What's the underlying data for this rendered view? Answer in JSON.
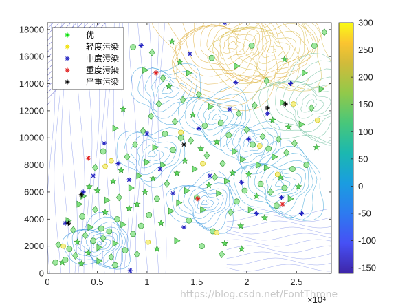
{
  "chart_data": {
    "type": "scatter",
    "x_exponent_label": "×10⁴",
    "xlim": [
      0,
      28500
    ],
    "ylim": [
      0,
      18500
    ],
    "xticks": [
      "0",
      "0.5",
      "1",
      "1.5",
      "2",
      "2.5"
    ],
    "xtick_values": [
      0,
      5000,
      10000,
      15000,
      20000,
      25000
    ],
    "yticks": [
      "0",
      "2000",
      "4000",
      "6000",
      "8000",
      "10000",
      "12000",
      "14000",
      "16000",
      "18000"
    ],
    "ytick_values": [
      0,
      2000,
      4000,
      6000,
      8000,
      10000,
      12000,
      14000,
      16000,
      18000
    ],
    "colorbar": {
      "min": -160,
      "max": 300,
      "ticks": [
        "300",
        "250",
        "200",
        "150",
        "100",
        "50",
        "0",
        "-50",
        "-100",
        "-150"
      ],
      "tick_values": [
        300,
        250,
        200,
        150,
        100,
        50,
        0,
        -50,
        -100,
        -150
      ],
      "colors": [
        "#3e26a8",
        "#4650f5",
        "#2d7bf0",
        "#1a9de0",
        "#1bb8b0",
        "#48c77a",
        "#92c94a",
        "#d2bb3a",
        "#fbc530",
        "#f9fb15"
      ]
    },
    "legend": {
      "placement": "top-left",
      "entries": [
        {
          "label": "优",
          "color": "#00e000"
        },
        {
          "label": "轻度污染",
          "color": "#f0e000"
        },
        {
          "label": "中度污染",
          "color": "#2020c0"
        },
        {
          "label": "重度污染",
          "color": "#e02020"
        },
        {
          "label": "严重污染",
          "color": "#000000"
        }
      ]
    },
    "series": [
      {
        "name": "优",
        "color": "#00e000",
        "points": [
          [
            800,
            800
          ],
          [
            1100,
            2100
          ],
          [
            1500,
            800
          ],
          [
            2100,
            3900
          ],
          [
            2200,
            1800
          ],
          [
            2600,
            3200
          ],
          [
            3000,
            2300
          ],
          [
            3200,
            5100
          ],
          [
            3500,
            4200
          ],
          [
            3800,
            2800
          ],
          [
            4100,
            1500
          ],
          [
            4300,
            3400
          ],
          [
            4600,
            2400
          ],
          [
            4800,
            4700
          ],
          [
            5000,
            6100
          ],
          [
            5200,
            1900
          ],
          [
            5400,
            3300
          ],
          [
            5600,
            2600
          ],
          [
            5800,
            4500
          ],
          [
            6000,
            5400
          ],
          [
            6200,
            3100
          ],
          [
            6400,
            1200
          ],
          [
            6600,
            6800
          ],
          [
            6800,
            2200
          ],
          [
            7000,
            4000
          ],
          [
            7200,
            5600
          ],
          [
            7400,
            7600
          ],
          [
            7600,
            3600
          ],
          [
            7800,
            1700
          ],
          [
            8000,
            8600
          ],
          [
            8200,
            4800
          ],
          [
            8400,
            6300
          ],
          [
            8600,
            2900
          ],
          [
            8800,
            9500
          ],
          [
            9000,
            5100
          ],
          [
            9200,
            7200
          ],
          [
            9400,
            3500
          ],
          [
            9600,
            10500
          ],
          [
            9800,
            6000
          ],
          [
            10000,
            8200
          ],
          [
            10200,
            4300
          ],
          [
            10400,
            11600
          ],
          [
            10600,
            7000
          ],
          [
            10800,
            9300
          ],
          [
            11000,
            5500
          ],
          [
            11200,
            12500
          ],
          [
            11400,
            3700
          ],
          [
            11600,
            8000
          ],
          [
            11800,
            10300
          ],
          [
            12000,
            6600
          ],
          [
            12200,
            13800
          ],
          [
            12400,
            4600
          ],
          [
            12600,
            9100
          ],
          [
            12800,
            11200
          ],
          [
            13000,
            7400
          ],
          [
            13200,
            5200
          ],
          [
            13400,
            10000
          ],
          [
            13600,
            12800
          ],
          [
            13800,
            8300
          ],
          [
            14000,
            6100
          ],
          [
            14200,
            3900
          ],
          [
            14400,
            9800
          ],
          [
            14600,
            11700
          ],
          [
            14800,
            7700
          ],
          [
            15000,
            5600
          ],
          [
            15200,
            13200
          ],
          [
            15400,
            9200
          ],
          [
            15600,
            4700
          ],
          [
            15800,
            10900
          ],
          [
            16000,
            8700
          ],
          [
            16200,
            6500
          ],
          [
            16400,
            12300
          ],
          [
            16600,
            3100
          ],
          [
            16800,
            7100
          ],
          [
            17000,
            9700
          ],
          [
            17200,
            5900
          ],
          [
            17400,
            11100
          ],
          [
            17600,
            8100
          ],
          [
            17800,
            2200
          ],
          [
            18000,
            6800
          ],
          [
            18200,
            10200
          ],
          [
            18400,
            4500
          ],
          [
            18600,
            7400
          ],
          [
            18800,
            9000
          ],
          [
            19000,
            5300
          ],
          [
            19200,
            11800
          ],
          [
            19400,
            3500
          ],
          [
            19600,
            8400
          ],
          [
            19800,
            6100
          ],
          [
            20000,
            10600
          ],
          [
            20200,
            7300
          ],
          [
            20400,
            4700
          ],
          [
            20600,
            9500
          ],
          [
            20800,
            12400
          ],
          [
            21000,
            5700
          ],
          [
            21200,
            8000
          ],
          [
            21400,
            6600
          ],
          [
            21600,
            10100
          ],
          [
            21800,
            4100
          ],
          [
            22000,
            7800
          ],
          [
            22200,
            9200
          ],
          [
            22400,
            6000
          ],
          [
            22600,
            11300
          ],
          [
            22800,
            8600
          ],
          [
            23000,
            5000
          ],
          [
            23200,
            9900
          ],
          [
            23400,
            7100
          ],
          [
            23600,
            12600
          ],
          [
            23800,
            6300
          ],
          [
            24000,
            8900
          ],
          [
            24200,
            10800
          ],
          [
            24400,
            5500
          ],
          [
            24600,
            7700
          ],
          [
            24800,
            9600
          ],
          [
            25200,
            6400
          ],
          [
            25500,
            11000
          ],
          [
            26000,
            8000
          ],
          [
            26500,
            12200
          ],
          [
            27000,
            9300
          ],
          [
            27500,
            13600
          ],
          [
            1800,
            1000
          ],
          [
            2800,
            1300
          ],
          [
            3400,
            700
          ],
          [
            5200,
            900
          ],
          [
            6800,
            600
          ],
          [
            9000,
            1400
          ],
          [
            11000,
            1800
          ],
          [
            13000,
            2400
          ],
          [
            15500,
            2000
          ],
          [
            17500,
            1400
          ],
          [
            19500,
            1800
          ],
          [
            14200,
            14800
          ],
          [
            16500,
            15900
          ],
          [
            10500,
            16300
          ],
          [
            12500,
            17100
          ],
          [
            9800,
            15000
          ],
          [
            8600,
            16700
          ],
          [
            11600,
            14400
          ],
          [
            13300,
            15600
          ],
          [
            19000,
            15300
          ],
          [
            20500,
            16800
          ],
          [
            22000,
            14200
          ],
          [
            23800,
            15800
          ],
          [
            25800,
            14800
          ],
          [
            26800,
            16800
          ],
          [
            27800,
            17800
          ],
          [
            7600,
            12100
          ],
          [
            6800,
            10700
          ],
          [
            5600,
            9000
          ],
          [
            4800,
            7800
          ],
          [
            4200,
            6400
          ],
          [
            3600,
            5700
          ]
        ]
      },
      {
        "name": "轻度污染",
        "color": "#f0e000",
        "points": [
          [
            1600,
            2000
          ],
          [
            5800,
            7900
          ],
          [
            6400,
            8300
          ],
          [
            10100,
            2300
          ],
          [
            13400,
            10400
          ],
          [
            15600,
            8100
          ],
          [
            21300,
            9400
          ],
          [
            23100,
            7300
          ],
          [
            17000,
            3000
          ],
          [
            24700,
            12500
          ],
          [
            27100,
            11300
          ]
        ]
      },
      {
        "name": "中度污染",
        "color": "#2020c0",
        "points": [
          [
            1800,
            3700
          ],
          [
            3600,
            6000
          ],
          [
            4600,
            7200
          ],
          [
            5700,
            9600
          ],
          [
            7100,
            8100
          ],
          [
            8200,
            6900
          ],
          [
            9400,
            16800
          ],
          [
            10000,
            10300
          ],
          [
            11300,
            7700
          ],
          [
            12600,
            5900
          ],
          [
            13700,
            3400
          ],
          [
            15200,
            10700
          ],
          [
            16300,
            7200
          ],
          [
            17800,
            18500
          ],
          [
            18300,
            12100
          ],
          [
            18900,
            14100
          ],
          [
            19500,
            6700
          ],
          [
            20200,
            9900
          ],
          [
            21000,
            4400
          ],
          [
            22100,
            11800
          ],
          [
            23500,
            5600
          ],
          [
            24400,
            14000
          ],
          [
            25500,
            4400
          ],
          [
            8300,
            200
          ],
          [
            14300,
            16200
          ]
        ]
      },
      {
        "name": "重度污染",
        "color": "#e02020",
        "points": [
          [
            4100,
            8500
          ],
          [
            10900,
            14800
          ],
          [
            15100,
            5500
          ],
          [
            23600,
            5100
          ]
        ]
      },
      {
        "name": "严重污染",
        "color": "#000000",
        "points": [
          [
            2100,
            3700
          ],
          [
            3400,
            5800
          ],
          [
            13700,
            9500
          ],
          [
            22100,
            12200
          ],
          [
            23900,
            12500
          ]
        ]
      }
    ]
  },
  "watermark": "https://blog.csdn.net/FontThrone"
}
